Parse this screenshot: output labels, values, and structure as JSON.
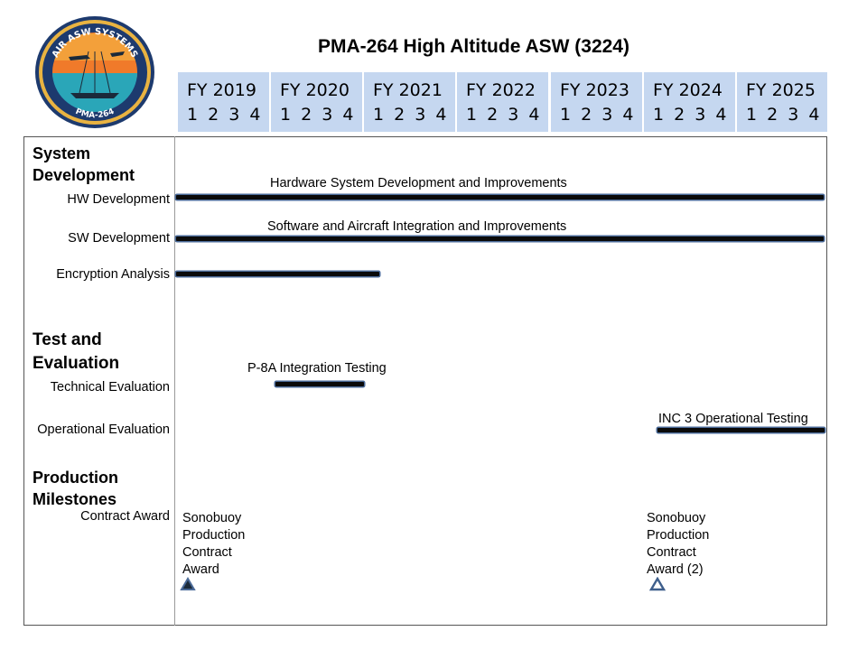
{
  "logo": {
    "top_text": "AIR ASW SYSTEMS",
    "bottom_text": "PMA-264",
    "colors": {
      "ring": "#1d3a6e",
      "sky": "#f07a2a",
      "sea": "#2aa6b8"
    }
  },
  "title": "PMA-264 High Altitude ASW (3224)",
  "fiscal_years": [
    {
      "label": "FY 2019",
      "quarters": "1 2 3 4"
    },
    {
      "label": "FY 2020",
      "quarters": "1 2 3 4"
    },
    {
      "label": "FY 2021",
      "quarters": "1 2 3 4"
    },
    {
      "label": "FY 2022",
      "quarters": "1 2 3 4"
    },
    {
      "label": "FY 2023",
      "quarters": "1 2 3 4"
    },
    {
      "label": "FY 2024",
      "quarters": "1 2 3 4"
    },
    {
      "label": "FY 2025",
      "quarters": "1 2 3 4"
    }
  ],
  "timeline": {
    "start_year": 2019,
    "end_year": 2025
  },
  "sections": {
    "system_development": "System Development",
    "test_evaluation": "Test and Evaluation",
    "production": "Production Milestones"
  },
  "rows": {
    "hw": "HW Development",
    "sw": "SW Development",
    "enc": "Encryption Analysis",
    "tech": "Technical Evaluation",
    "oper": "Operational Evaluation",
    "contract": "Contract Award"
  },
  "activities": [
    {
      "label": "Hardware System Development and Improvements",
      "start": "FY2019 Q1",
      "end": "FY2025 Q4"
    },
    {
      "label": "Software and Aircraft Integration and Improvements",
      "start": "FY2019 Q1",
      "end": "FY2025 Q4"
    },
    {
      "label": "",
      "start": "FY2019 Q1",
      "end": "FY2021 Q2"
    },
    {
      "label": "P-8A Integration  Testing",
      "start": "FY2020 Q2",
      "end": "FY2021 Q1"
    },
    {
      "label": "INC 3 Operational Testing",
      "start": "FY2024 Q1",
      "end": "FY2025 Q4"
    }
  ],
  "milestones": [
    {
      "label": "Sonobuoy\nProduction\nContract\nAward",
      "when": "FY2019 Q1",
      "symbol": "filled-triangle"
    },
    {
      "label": "Sonobuoy\nProduction\nContract\nAward (2)",
      "when": "FY2024 Q1",
      "symbol": "open-triangle"
    }
  ]
}
